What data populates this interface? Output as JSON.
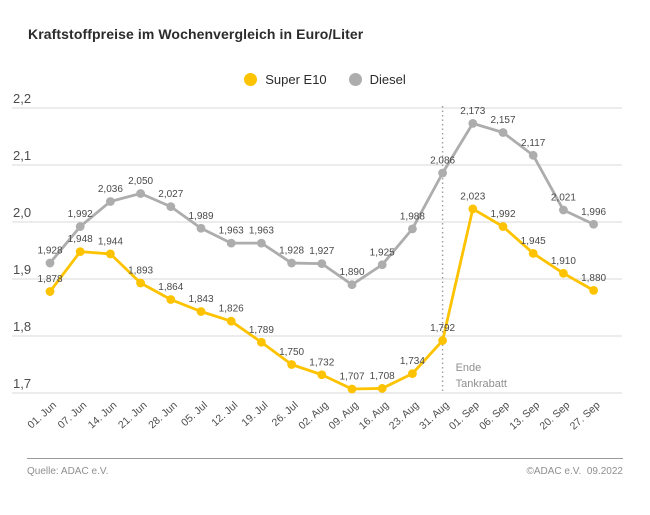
{
  "title": "Kraftstoffpreise im Wochenvergleich in Euro/Liter",
  "footer": {
    "source": "Quelle: ADAC e.V.",
    "copyright": "©ADAC e.V.  09.2022"
  },
  "annotation": {
    "text_line1": "Ende",
    "text_line2": "Tankrabatt",
    "at_category": "31. Aug"
  },
  "colors": {
    "super_e10": "#FDC300",
    "diesel": "#ADADAD",
    "grid": "#D9D9D9",
    "label_text": "#4A4A4A",
    "annotation_text": "#8F8F8F"
  },
  "chart_data": {
    "type": "line",
    "title": "Kraftstoffpreise im Wochenvergleich in Euro/Liter",
    "unit": "Euro/Liter",
    "categories": [
      "01. Jun",
      "07. Jun",
      "14. Jun",
      "21. Jun",
      "28. Jun",
      "05. Jul",
      "12. Jul",
      "19. Jul",
      "26. Jul",
      "02. Aug",
      "09. Aug",
      "16. Aug",
      "23. Aug",
      "31. Aug",
      "01. Sep",
      "06. Sep",
      "13. Sep",
      "20. Sep",
      "27. Sep"
    ],
    "series": [
      {
        "name": "Super E10",
        "color": "#FDC300",
        "values": [
          1.878,
          1.948,
          1.944,
          1.893,
          1.864,
          1.843,
          1.826,
          1.789,
          1.75,
          1.732,
          1.707,
          1.708,
          1.734,
          1.792,
          2.023,
          1.992,
          1.945,
          1.91,
          1.88
        ]
      },
      {
        "name": "Diesel",
        "color": "#ADADAD",
        "values": [
          1.928,
          1.992,
          2.036,
          2.05,
          2.027,
          1.989,
          1.963,
          1.963,
          1.928,
          1.927,
          1.89,
          1.925,
          1.988,
          2.086,
          2.173,
          2.157,
          2.117,
          2.021,
          1.996
        ]
      }
    ],
    "ylim": [
      1.7,
      2.2
    ],
    "yticks": [
      2.2,
      2.1,
      2.0,
      1.9,
      1.8,
      1.7
    ],
    "grid": true,
    "legend_position": "top-center",
    "annotation_x": "31. Aug"
  }
}
